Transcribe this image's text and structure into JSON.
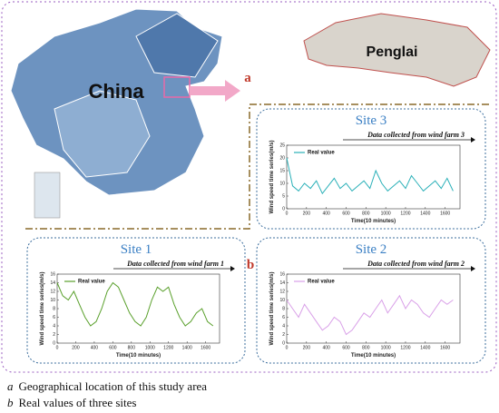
{
  "labels": {
    "china": "China",
    "penglai": "Penglai",
    "a": "a",
    "b": "b"
  },
  "captions": [
    {
      "letter": "a",
      "text": "Geographical location of this study area"
    },
    {
      "letter": "b",
      "text": "Real values of three sites"
    }
  ],
  "chart_data": [
    {
      "type": "line",
      "title": "Site 3",
      "annotation": "Data collected from wind farm 3",
      "x_label": "Time(10 minutes)",
      "y_label": "Wind speed time series(m/s)",
      "x": [
        0,
        60,
        120,
        180,
        240,
        300,
        360,
        420,
        480,
        540,
        600,
        660,
        720,
        780,
        840,
        900,
        960,
        1020,
        1080,
        1140,
        1200,
        1260,
        1320,
        1380,
        1440,
        1500,
        1560,
        1620,
        1680
      ],
      "series": [
        {
          "name": "Real value",
          "color": "#2ab0b8",
          "values": [
            20,
            9,
            7,
            10,
            8,
            11,
            6,
            9,
            12,
            8,
            10,
            7,
            9,
            11,
            8,
            15,
            10,
            7,
            9,
            11,
            8,
            13,
            10,
            7,
            9,
            11,
            8,
            12,
            7
          ]
        }
      ],
      "xlim": [
        0,
        1750
      ],
      "xticks": [
        0,
        200,
        400,
        600,
        800,
        1000,
        1200,
        1400,
        1600
      ],
      "ylim": [
        0,
        25
      ],
      "yticks": [
        0,
        5,
        10,
        15,
        20,
        25
      ]
    },
    {
      "type": "line",
      "title": "Site 1",
      "annotation": "Data collected from wind farm 1",
      "x_label": "Time(10 minutes)",
      "y_label": "Wind speed time series(m/s)",
      "x": [
        0,
        60,
        120,
        180,
        240,
        300,
        360,
        420,
        480,
        540,
        600,
        660,
        720,
        780,
        840,
        900,
        960,
        1020,
        1080,
        1140,
        1200,
        1260,
        1320,
        1380,
        1440,
        1500,
        1560,
        1620,
        1680
      ],
      "series": [
        {
          "name": "Real value",
          "color": "#5aa02c",
          "values": [
            14,
            11,
            10,
            12,
            9,
            6,
            4,
            5,
            8,
            12,
            14,
            13,
            10,
            7,
            5,
            4,
            6,
            10,
            13,
            12,
            13,
            9,
            6,
            4,
            5,
            7,
            8,
            5,
            4
          ]
        }
      ],
      "xlim": [
        0,
        1750
      ],
      "xticks": [
        0,
        200,
        400,
        600,
        800,
        1000,
        1200,
        1400,
        1600
      ],
      "ylim": [
        0,
        16
      ],
      "yticks": [
        0,
        2,
        4,
        6,
        8,
        10,
        12,
        14,
        16
      ]
    },
    {
      "type": "line",
      "title": "Site 2",
      "annotation": "Data collected from wind farm 2",
      "x_label": "Time(10 minutes)",
      "y_label": "Wind speed time series(m/s)",
      "x": [
        0,
        60,
        120,
        180,
        240,
        300,
        360,
        420,
        480,
        540,
        600,
        660,
        720,
        780,
        840,
        900,
        960,
        1020,
        1080,
        1140,
        1200,
        1260,
        1320,
        1380,
        1440,
        1500,
        1560,
        1620,
        1680
      ],
      "series": [
        {
          "name": "Real value",
          "color": "#d9a0e8",
          "values": [
            10,
            8,
            6,
            9,
            7,
            5,
            3,
            4,
            6,
            5,
            2,
            3,
            5,
            7,
            6,
            8,
            10,
            7,
            9,
            11,
            8,
            10,
            9,
            7,
            6,
            8,
            10,
            9,
            10
          ]
        }
      ],
      "xlim": [
        0,
        1750
      ],
      "xticks": [
        0,
        200,
        400,
        600,
        800,
        1000,
        1200,
        1400,
        1600
      ],
      "ylim": [
        0,
        16
      ],
      "yticks": [
        0,
        2,
        4,
        6,
        8,
        10,
        12,
        14,
        16
      ]
    }
  ]
}
